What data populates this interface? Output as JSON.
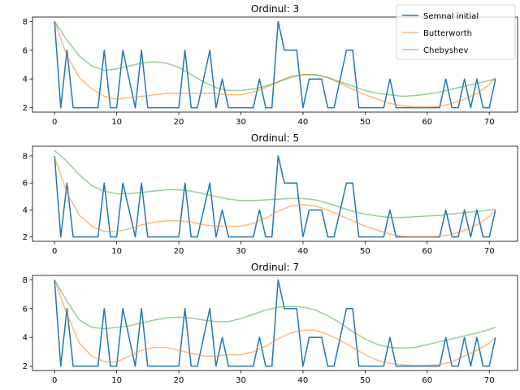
{
  "legend": {
    "placement": "top-right",
    "entries": [
      {
        "name": "Semnal initial",
        "color": "#1f77b4"
      },
      {
        "name": "Butterworth",
        "color": "#ff7f0e"
      },
      {
        "name": "Chebyshev",
        "color": "#2ca02c"
      }
    ]
  },
  "chart_data": [
    {
      "type": "line",
      "title": "Ordinul: 3",
      "xlim": [
        -3.55,
        74.55
      ],
      "ylim": [
        1.7,
        8.3
      ],
      "xticks": [
        0,
        10,
        20,
        30,
        40,
        50,
        60,
        70
      ],
      "yticks": [
        2,
        4,
        6,
        8
      ],
      "grid": false,
      "series": [
        {
          "name": "Semnal initial",
          "color": "#1f77b4",
          "opacity": 1,
          "x": [
            0,
            1,
            2,
            3,
            4,
            5,
            6,
            7,
            8,
            9,
            10,
            11,
            12,
            13,
            14,
            15,
            16,
            17,
            18,
            19,
            20,
            21,
            22,
            23,
            24,
            25,
            26,
            27,
            28,
            29,
            30,
            31,
            32,
            33,
            34,
            35,
            36,
            37,
            38,
            39,
            40,
            41,
            42,
            43,
            44,
            45,
            46,
            47,
            48,
            49,
            50,
            51,
            52,
            53,
            54,
            55,
            56,
            57,
            58,
            59,
            60,
            61,
            62,
            63,
            64,
            65,
            66,
            67,
            68,
            69,
            70,
            71
          ],
          "y": [
            8,
            2,
            6,
            2,
            2,
            2,
            2,
            2,
            6,
            2,
            2,
            6,
            4,
            2,
            6,
            2,
            2,
            2,
            2,
            2,
            2,
            6,
            2,
            2,
            4,
            6,
            2,
            4,
            2,
            2,
            2,
            2,
            2,
            4,
            2,
            2,
            8,
            6,
            6,
            6,
            2,
            4,
            4,
            4,
            2,
            2,
            4,
            6,
            6,
            2,
            2,
            2,
            2,
            2,
            4,
            2,
            2,
            2,
            2,
            2,
            2,
            2,
            2,
            4,
            2,
            2,
            4,
            2,
            4,
            2,
            2,
            4
          ]
        },
        {
          "name": "Butterworth",
          "color": "#ff7f0e",
          "opacity": 0.55,
          "x": [
            0,
            2,
            4,
            6,
            8,
            10,
            12,
            14,
            16,
            18,
            20,
            22,
            24,
            26,
            28,
            30,
            32,
            34,
            36,
            38,
            40,
            42,
            44,
            46,
            48,
            50,
            52,
            54,
            56,
            58,
            60,
            62,
            64,
            66,
            68,
            70,
            71
          ],
          "y": [
            8,
            5.6,
            4.1,
            3.3,
            2.8,
            2.6,
            2.7,
            2.8,
            2.9,
            3.0,
            3.0,
            3.0,
            3.0,
            3.0,
            2.9,
            2.9,
            3.1,
            3.4,
            3.8,
            4.2,
            4.3,
            4.3,
            4.1,
            3.7,
            3.3,
            2.9,
            2.6,
            2.3,
            2.15,
            2.05,
            2.05,
            2.1,
            2.3,
            2.6,
            3.0,
            3.6,
            4.1
          ]
        },
        {
          "name": "Chebyshev",
          "color": "#2ca02c",
          "opacity": 0.5,
          "x": [
            0,
            2,
            4,
            6,
            8,
            10,
            12,
            14,
            16,
            18,
            20,
            22,
            24,
            26,
            28,
            30,
            32,
            34,
            36,
            38,
            40,
            42,
            44,
            46,
            48,
            50,
            52,
            54,
            56,
            58,
            60,
            62,
            64,
            66,
            68,
            70,
            71
          ],
          "y": [
            8,
            6.7,
            5.6,
            4.9,
            4.6,
            4.7,
            4.9,
            5.1,
            5.2,
            5.1,
            4.8,
            4.3,
            3.8,
            3.4,
            3.2,
            3.2,
            3.3,
            3.5,
            3.8,
            4.1,
            4.3,
            4.3,
            4.1,
            3.8,
            3.5,
            3.2,
            3.0,
            2.9,
            2.8,
            2.85,
            2.95,
            3.1,
            3.3,
            3.5,
            3.7,
            3.9,
            4.0
          ]
        }
      ]
    },
    {
      "type": "line",
      "title": "Ordinul: 5",
      "xlim": [
        -3.55,
        74.55
      ],
      "ylim": [
        1.68,
        8.72
      ],
      "xticks": [
        0,
        10,
        20,
        30,
        40,
        50,
        60,
        70
      ],
      "yticks": [
        2,
        4,
        6,
        8
      ],
      "grid": false,
      "series": [
        {
          "name": "Semnal initial",
          "color": "#1f77b4",
          "opacity": 1,
          "x": [
            0,
            1,
            2,
            3,
            4,
            5,
            6,
            7,
            8,
            9,
            10,
            11,
            12,
            13,
            14,
            15,
            16,
            17,
            18,
            19,
            20,
            21,
            22,
            23,
            24,
            25,
            26,
            27,
            28,
            29,
            30,
            31,
            32,
            33,
            34,
            35,
            36,
            37,
            38,
            39,
            40,
            41,
            42,
            43,
            44,
            45,
            46,
            47,
            48,
            49,
            50,
            51,
            52,
            53,
            54,
            55,
            56,
            57,
            58,
            59,
            60,
            61,
            62,
            63,
            64,
            65,
            66,
            67,
            68,
            69,
            70,
            71
          ],
          "y": [
            8,
            2,
            6,
            2,
            2,
            2,
            2,
            2,
            6,
            2,
            2,
            6,
            4,
            2,
            6,
            2,
            2,
            2,
            2,
            2,
            2,
            6,
            2,
            2,
            4,
            6,
            2,
            4,
            2,
            2,
            2,
            2,
            2,
            4,
            2,
            2,
            8,
            6,
            6,
            6,
            2,
            4,
            4,
            4,
            2,
            2,
            4,
            6,
            6,
            2,
            2,
            2,
            2,
            2,
            4,
            2,
            2,
            2,
            2,
            2,
            2,
            2,
            2,
            4,
            2,
            2,
            4,
            2,
            4,
            2,
            2,
            4
          ]
        },
        {
          "name": "Butterworth",
          "color": "#ff7f0e",
          "opacity": 0.55,
          "x": [
            0,
            2,
            4,
            6,
            8,
            10,
            12,
            14,
            16,
            18,
            20,
            22,
            24,
            26,
            28,
            30,
            32,
            34,
            36,
            38,
            40,
            42,
            44,
            46,
            48,
            50,
            52,
            54,
            56,
            58,
            60,
            62,
            64,
            66,
            68,
            70,
            71
          ],
          "y": [
            7.9,
            5.3,
            3.6,
            2.8,
            2.4,
            2.4,
            2.6,
            2.9,
            3.1,
            3.2,
            3.2,
            3.1,
            2.9,
            2.8,
            2.8,
            2.8,
            3.0,
            3.4,
            3.9,
            4.3,
            4.4,
            4.3,
            4.0,
            3.6,
            3.2,
            2.8,
            2.5,
            2.2,
            2.05,
            2.0,
            2.0,
            2.05,
            2.2,
            2.5,
            2.9,
            3.5,
            4.0
          ]
        },
        {
          "name": "Chebyshev",
          "color": "#2ca02c",
          "opacity": 0.5,
          "x": [
            0,
            2,
            4,
            6,
            8,
            10,
            12,
            14,
            16,
            18,
            20,
            22,
            24,
            26,
            28,
            30,
            32,
            34,
            36,
            38,
            40,
            42,
            44,
            46,
            48,
            50,
            52,
            54,
            56,
            58,
            60,
            62,
            64,
            66,
            68,
            70,
            71
          ],
          "y": [
            8.4,
            7.6,
            6.6,
            5.8,
            5.4,
            5.2,
            5.2,
            5.3,
            5.4,
            5.5,
            5.5,
            5.4,
            5.2,
            5.0,
            4.8,
            4.7,
            4.7,
            4.75,
            4.8,
            4.85,
            4.85,
            4.75,
            4.5,
            4.2,
            3.9,
            3.7,
            3.55,
            3.45,
            3.45,
            3.5,
            3.55,
            3.6,
            3.7,
            3.8,
            3.9,
            4.0,
            4.05
          ]
        }
      ]
    },
    {
      "type": "line",
      "title": "Ordinul: 7",
      "xlim": [
        -3.55,
        74.55
      ],
      "ylim": [
        1.7,
        8.3
      ],
      "xticks": [
        0,
        10,
        20,
        30,
        40,
        50,
        60,
        70
      ],
      "yticks": [
        2,
        4,
        6,
        8
      ],
      "grid": false,
      "series": [
        {
          "name": "Semnal initial",
          "color": "#1f77b4",
          "opacity": 1,
          "x": [
            0,
            1,
            2,
            3,
            4,
            5,
            6,
            7,
            8,
            9,
            10,
            11,
            12,
            13,
            14,
            15,
            16,
            17,
            18,
            19,
            20,
            21,
            22,
            23,
            24,
            25,
            26,
            27,
            28,
            29,
            30,
            31,
            32,
            33,
            34,
            35,
            36,
            37,
            38,
            39,
            40,
            41,
            42,
            43,
            44,
            45,
            46,
            47,
            48,
            49,
            50,
            51,
            52,
            53,
            54,
            55,
            56,
            57,
            58,
            59,
            60,
            61,
            62,
            63,
            64,
            65,
            66,
            67,
            68,
            69,
            70,
            71
          ],
          "y": [
            8,
            2,
            6,
            2,
            2,
            2,
            2,
            2,
            6,
            2,
            2,
            6,
            4,
            2,
            6,
            2,
            2,
            2,
            2,
            2,
            2,
            6,
            2,
            2,
            4,
            6,
            2,
            4,
            2,
            2,
            2,
            2,
            2,
            4,
            2,
            2,
            8,
            6,
            6,
            6,
            2,
            4,
            4,
            4,
            2,
            2,
            4,
            6,
            6,
            2,
            2,
            2,
            2,
            2,
            4,
            2,
            2,
            2,
            2,
            2,
            2,
            2,
            2,
            4,
            2,
            2,
            4,
            2,
            4,
            2,
            2,
            4
          ]
        },
        {
          "name": "Butterworth",
          "color": "#ff7f0e",
          "opacity": 0.55,
          "x": [
            0,
            2,
            4,
            6,
            8,
            10,
            12,
            14,
            16,
            18,
            20,
            22,
            24,
            26,
            28,
            30,
            32,
            34,
            36,
            38,
            40,
            42,
            44,
            46,
            48,
            50,
            52,
            54,
            56,
            58,
            60,
            62,
            64,
            66,
            68,
            70,
            71
          ],
          "y": [
            8,
            5.6,
            3.6,
            2.7,
            2.3,
            2.3,
            2.7,
            3.1,
            3.3,
            3.3,
            3.1,
            2.9,
            2.7,
            2.7,
            2.8,
            2.8,
            3.0,
            3.4,
            3.9,
            4.3,
            4.5,
            4.5,
            4.2,
            3.8,
            3.3,
            2.8,
            2.4,
            2.2,
            2.1,
            2.05,
            2.05,
            2.1,
            2.3,
            2.7,
            3.1,
            3.6,
            4.0
          ]
        },
        {
          "name": "Chebyshev",
          "color": "#2ca02c",
          "opacity": 0.5,
          "x": [
            0,
            2,
            4,
            6,
            8,
            10,
            12,
            14,
            16,
            18,
            20,
            22,
            24,
            26,
            28,
            30,
            32,
            34,
            36,
            38,
            40,
            42,
            44,
            46,
            48,
            50,
            52,
            54,
            56,
            58,
            60,
            62,
            64,
            66,
            68,
            70,
            71
          ],
          "y": [
            8,
            6.5,
            5.2,
            4.7,
            4.6,
            4.7,
            4.8,
            5.0,
            5.2,
            5.35,
            5.4,
            5.35,
            5.2,
            5.1,
            5.1,
            5.3,
            5.6,
            5.9,
            6.1,
            6.15,
            6.1,
            5.9,
            5.5,
            5.0,
            4.4,
            3.9,
            3.5,
            3.3,
            3.25,
            3.3,
            3.5,
            3.7,
            3.9,
            4.1,
            4.3,
            4.55,
            4.7
          ]
        }
      ]
    }
  ]
}
